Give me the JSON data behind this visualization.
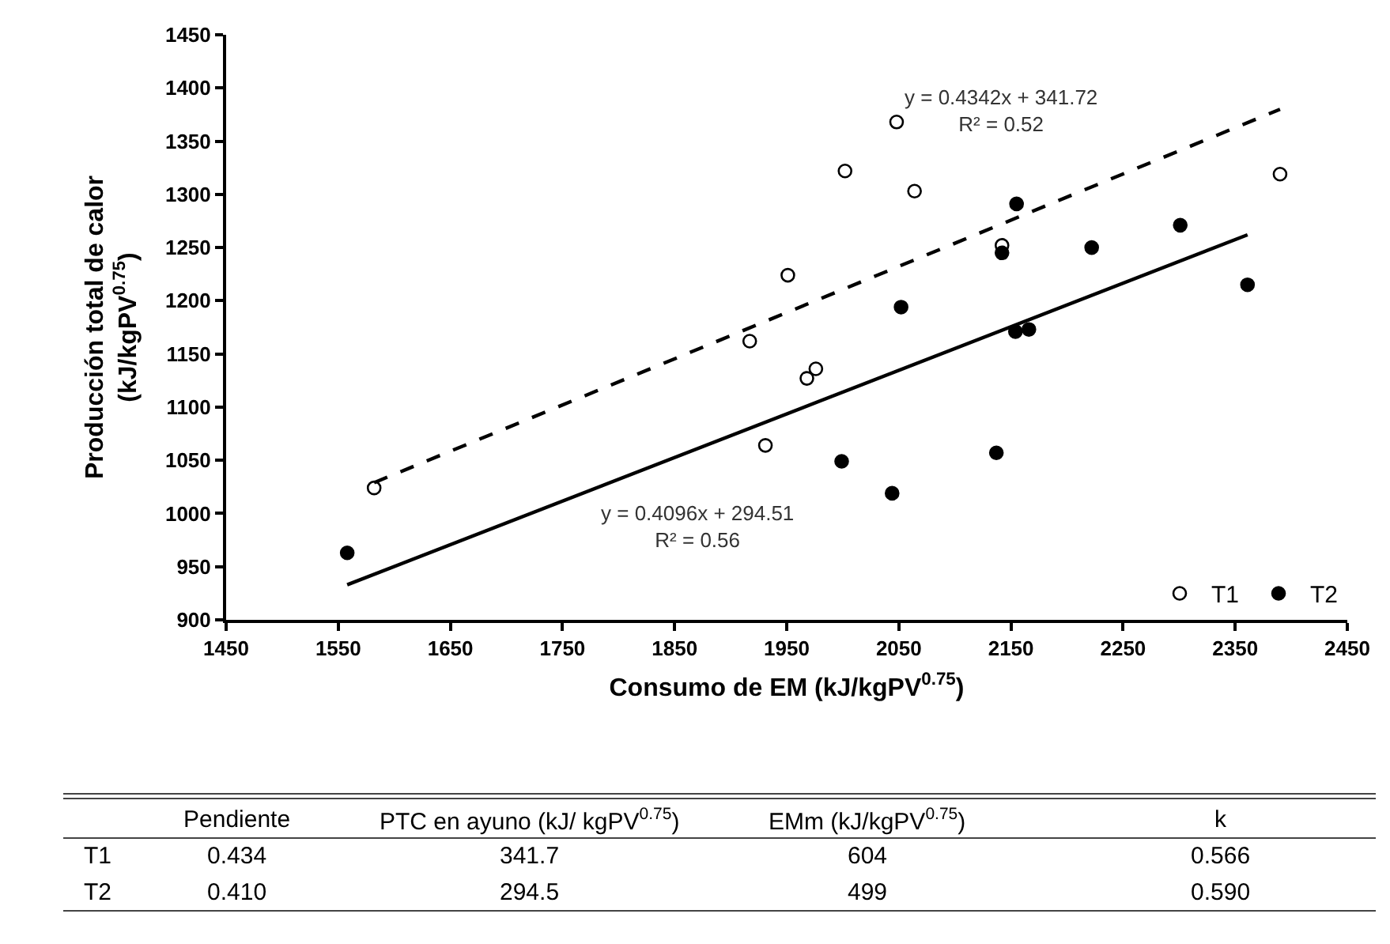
{
  "chart_data": {
    "type": "scatter",
    "xlabel": "Consumo de EM (kJ/kgPV$^{0.75}$)",
    "ylabel": "Producción total de calor\n(kJ/kgPV$^{0.75}$)",
    "xlim": [
      1450,
      2450
    ],
    "xticks": [
      1450,
      1550,
      1650,
      1750,
      1850,
      1950,
      2050,
      2150,
      2250,
      2350,
      2450
    ],
    "ylim": [
      900,
      1450
    ],
    "yticks": [
      900,
      950,
      1000,
      1050,
      1100,
      1150,
      1200,
      1250,
      1300,
      1350,
      1400,
      1450
    ],
    "grid": false,
    "legend": "bottom right",
    "series": [
      {
        "name": "T1",
        "color": "#000000",
        "marker": "circle-open",
        "x": [
          1582,
          1917,
          1931,
          1951,
          1968,
          1976,
          2002,
          2048,
          2064,
          2142,
          2390
        ],
        "values": [
          1024,
          1162,
          1064,
          1224,
          1127,
          1136,
          1322,
          1368,
          1303,
          1252,
          1319
        ]
      },
      {
        "name": "T2",
        "color": "#000000",
        "marker": "circle",
        "x": [
          1558,
          1999,
          2044,
          2052,
          2137,
          2142,
          2154,
          2155,
          2166,
          2222,
          2301,
          2361
        ],
        "values": [
          963,
          1049,
          1019,
          1194,
          1057,
          1245,
          1171,
          1291,
          1173,
          1250,
          1271,
          1215
        ]
      },
      {
        "type": "line",
        "color": "#000000",
        "line_style": "dashed",
        "marker": "none",
        "x": [
          1582,
          2390
        ],
        "values": [
          1029,
          1380
        ]
      },
      {
        "type": "line",
        "color": "#000000",
        "line_style": "solid",
        "marker": "none",
        "x": [
          1558,
          2361
        ],
        "values": [
          933,
          1262
        ]
      }
    ],
    "annotations": [
      "y = 0.4342x + 341.72\nR² = 0.52",
      "y = 0.4096x + 294.51\nR² = 0.56",
      "Pendiente",
      "PTC en ayuno (kJ/ kgPV$^{0.75}$)",
      "EMm (kJ/kgPV$^{0.75}$)",
      "k",
      "T1",
      "0.434",
      "341.7",
      "604",
      "0.566",
      "T2",
      "0.410",
      "294.5",
      "499",
      "0.590"
    ]
  }
}
